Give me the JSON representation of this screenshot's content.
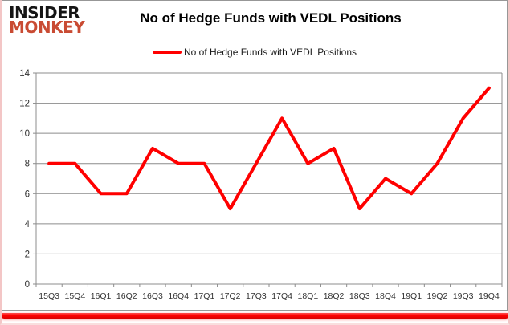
{
  "logo": {
    "line1": "INSIDER",
    "line2": "MONKEY"
  },
  "header": {
    "title": "No of Hedge Funds with VEDL Positions"
  },
  "legend": {
    "label": "No of Hedge Funds with VEDL Positions",
    "marker_color": "#ff0000"
  },
  "colors": {
    "series_line": "#ff0000",
    "gridline": "#8c8c8c",
    "axis_line": "#8c8c8c",
    "axis_text": "#333333",
    "logo_black": "#151515",
    "logo_red": "#c94b33",
    "accent_bar": "#ff0000"
  },
  "chart_data": {
    "type": "line",
    "title": "No of Hedge Funds with VEDL Positions",
    "categories": [
      "15Q3",
      "15Q4",
      "16Q1",
      "16Q2",
      "16Q3",
      "16Q4",
      "17Q1",
      "17Q2",
      "17Q3",
      "17Q4",
      "18Q1",
      "18Q2",
      "18Q3",
      "18Q4",
      "19Q1",
      "19Q2",
      "19Q3",
      "19Q4"
    ],
    "series": [
      {
        "name": "No of Hedge Funds with VEDL Positions",
        "color": "#ff0000",
        "values": [
          8,
          8,
          6,
          6,
          9,
          8,
          8,
          5,
          8,
          11,
          8,
          9,
          5,
          7,
          6,
          8,
          11,
          13
        ]
      }
    ],
    "ylim": [
      0,
      14
    ],
    "ytick_step": 2,
    "grid": true,
    "legend_position": "top-center"
  }
}
